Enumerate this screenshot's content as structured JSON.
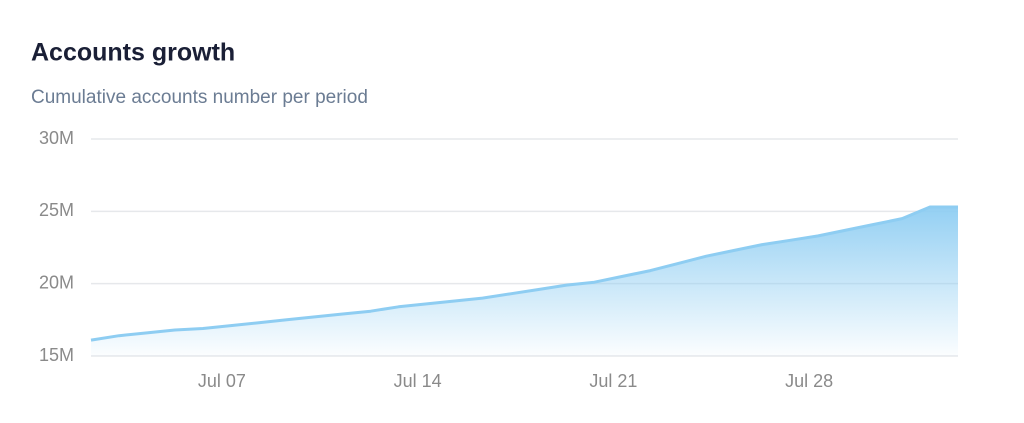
{
  "chart_data": {
    "type": "area",
    "title": "Accounts growth",
    "subtitle": "Cumulative accounts number per period",
    "categories": [
      null,
      null,
      null,
      null,
      null,
      "Jul 07",
      null,
      null,
      null,
      null,
      null,
      null,
      "Jul 14",
      null,
      null,
      null,
      null,
      null,
      null,
      "Jul 21",
      null,
      null,
      null,
      null,
      null,
      null,
      "Jul 28",
      null,
      null,
      null,
      null,
      null
    ],
    "values": [
      16100000,
      16400000,
      16600000,
      16800000,
      16900000,
      17100000,
      17300000,
      17500000,
      17700000,
      17900000,
      18100000,
      18400000,
      18600000,
      18800000,
      19000000,
      19300000,
      19600000,
      19900000,
      20100000,
      20500000,
      20900000,
      21400000,
      21900000,
      22300000,
      22700000,
      23000000,
      23300000,
      23700000,
      24100000,
      24500000,
      25300000,
      25300000
    ],
    "color": "#8ecdf2",
    "ylim": [
      15000000,
      30000000
    ],
    "yticks": [
      {
        "value": 15000000,
        "label": "15M"
      },
      {
        "value": 20000000,
        "label": "20M"
      },
      {
        "value": 25000000,
        "label": "25M"
      },
      {
        "value": 30000000,
        "label": "30M"
      }
    ],
    "grid": true
  }
}
